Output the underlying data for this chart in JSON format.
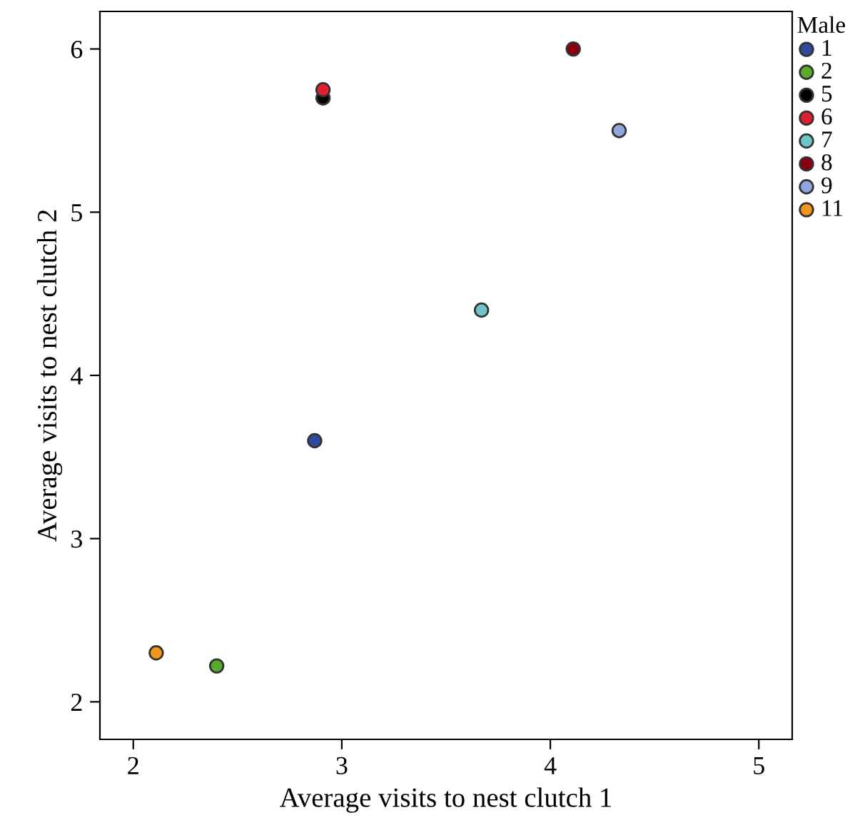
{
  "chart_data": {
    "type": "scatter",
    "xlabel": "Average visits to nest clutch 1",
    "ylabel": "Average visits to nest clutch 2",
    "legend_title": "Male",
    "legend": "right",
    "grid": false,
    "marker": "circle",
    "xlim": [
      1.84,
      5.16
    ],
    "ylim": [
      1.77,
      6.23
    ],
    "xticks": [
      2,
      3,
      4,
      5
    ],
    "yticks": [
      2,
      3,
      4,
      5,
      6
    ],
    "series": [
      {
        "name": "1",
        "color": "#2e4a9c",
        "x": [
          2.87
        ],
        "values": [
          3.6
        ]
      },
      {
        "name": "2",
        "color": "#5aab2a",
        "x": [
          2.4
        ],
        "values": [
          2.22
        ]
      },
      {
        "name": "5",
        "color": "#000000",
        "x": [
          2.91
        ],
        "values": [
          5.7
        ]
      },
      {
        "name": "6",
        "color": "#e0202e",
        "x": [
          2.91
        ],
        "values": [
          5.75
        ]
      },
      {
        "name": "7",
        "color": "#6cc5c9",
        "x": [
          3.67
        ],
        "values": [
          4.4
        ]
      },
      {
        "name": "8",
        "color": "#8b0010",
        "x": [
          4.11
        ],
        "values": [
          6.0
        ]
      },
      {
        "name": "9",
        "color": "#8fa7dc",
        "x": [
          4.33
        ],
        "values": [
          5.5
        ]
      },
      {
        "name": "11",
        "color": "#f0961e",
        "x": [
          2.11
        ],
        "values": [
          2.3
        ]
      }
    ]
  }
}
